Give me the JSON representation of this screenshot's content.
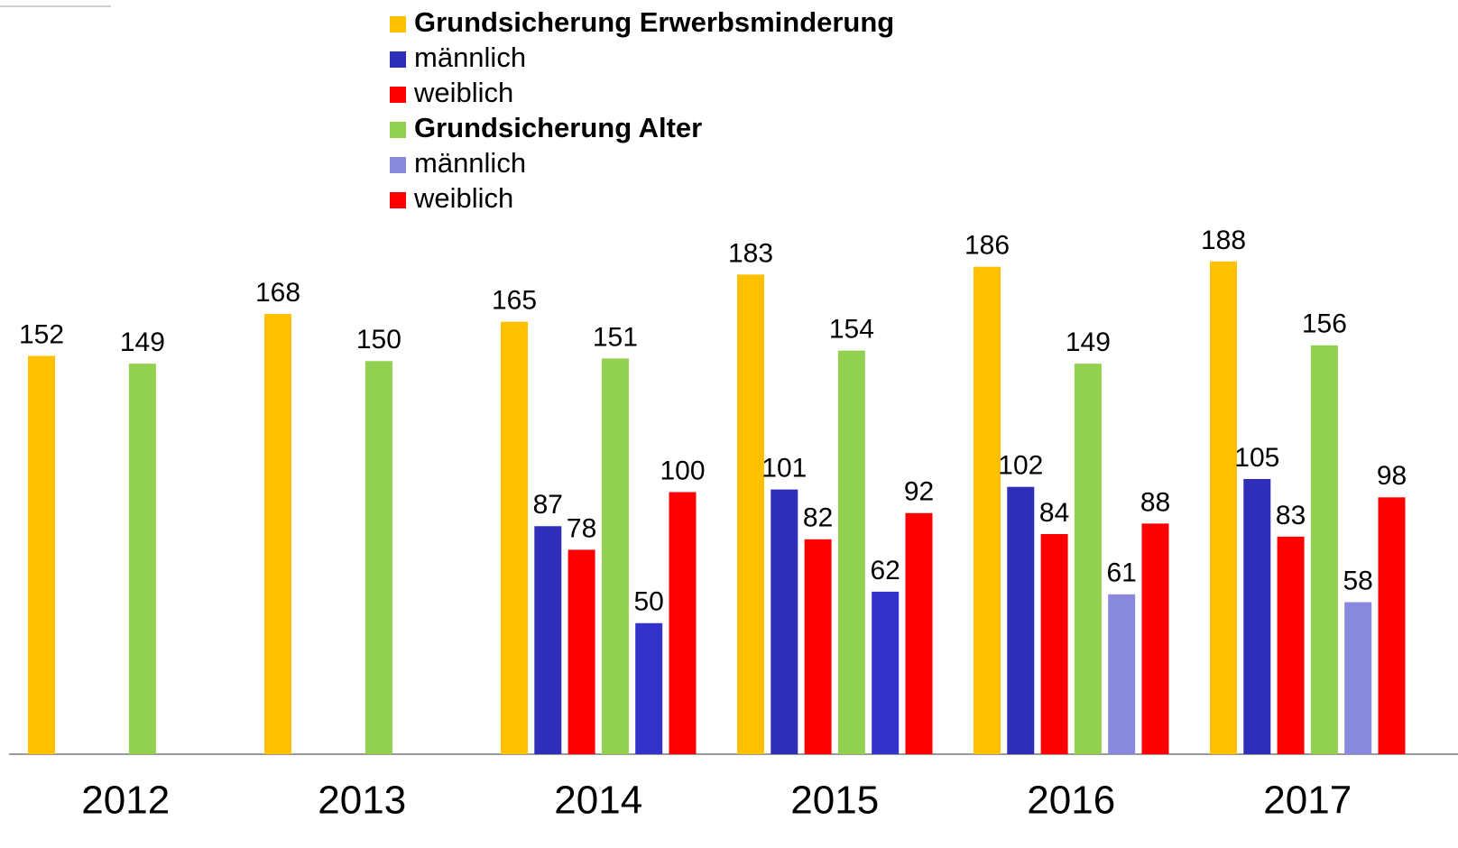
{
  "chart_data": {
    "type": "bar",
    "categories": [
      "2012",
      "2013",
      "2014",
      "2015",
      "2016",
      "2017"
    ],
    "series": [
      {
        "name": "Grundsicherung Erwerbsminderung",
        "color": "#ffc000",
        "bold": true,
        "values": [
          152,
          168,
          165,
          183,
          186,
          188
        ]
      },
      {
        "name": "männlich",
        "color": "#2e2eb8",
        "bold": false,
        "values": [
          null,
          null,
          87,
          101,
          102,
          105
        ]
      },
      {
        "name": "weiblich",
        "color": "#ff0000",
        "bold": false,
        "values": [
          null,
          null,
          78,
          82,
          84,
          83
        ]
      },
      {
        "name": "Grundsicherung Alter",
        "color": "#92d050",
        "bold": true,
        "values": [
          149,
          150,
          151,
          154,
          149,
          156
        ]
      },
      {
        "name": "männlich",
        "color": "#8888dd",
        "bold": false,
        "colors": [
          "#3333cc",
          "#3333cc",
          "#3333cc",
          "#3333cc",
          "#8888dd",
          "#8888dd"
        ],
        "values": [
          null,
          null,
          50,
          62,
          61,
          58
        ]
      },
      {
        "name": "weiblich",
        "color": "#ff0000",
        "bold": false,
        "values": [
          null,
          null,
          100,
          92,
          88,
          98
        ]
      }
    ],
    "ylim": [
      0,
      200
    ]
  }
}
